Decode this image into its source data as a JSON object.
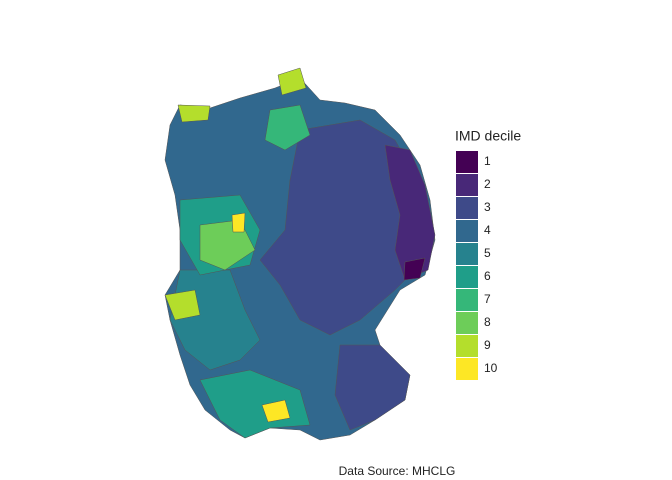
{
  "legend": {
    "title": "IMD decile",
    "items": [
      {
        "label": "1",
        "color": "#440154"
      },
      {
        "label": "2",
        "color": "#482878"
      },
      {
        "label": "3",
        "color": "#3E4A89"
      },
      {
        "label": "4",
        "color": "#31688E"
      },
      {
        "label": "5",
        "color": "#26828E"
      },
      {
        "label": "6",
        "color": "#1F9E89"
      },
      {
        "label": "7",
        "color": "#35B779"
      },
      {
        "label": "8",
        "color": "#6DCD59"
      },
      {
        "label": "9",
        "color": "#B4DE2C"
      },
      {
        "label": "10",
        "color": "#FDE725"
      }
    ]
  },
  "caption": "Data Source: MHCLG"
}
